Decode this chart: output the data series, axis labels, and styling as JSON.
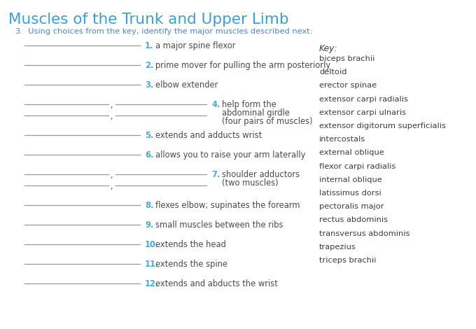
{
  "title": "Muscles of the Trunk and Upper Limb",
  "title_color": "#3B9FD4",
  "subtitle": "3.  Using choices from the key, identify the major muscles described next:",
  "subtitle_color": "#4A86C8",
  "bg_color": "#FFFFFF",
  "question_number_color": "#4BAAD3",
  "question_text_color": "#4A4A4A",
  "key_title": "Key:",
  "key_items": [
    "biceps brachii",
    "deltoid",
    "erector spinae",
    "extensor carpi radialis",
    "extensor carpi ulnaris",
    "extensor digitorum superficialis",
    "intercostals",
    "external oblique",
    "flexor carpi radialis",
    "internal oblique",
    "latissimus dorsi",
    "pectoralis major",
    "rectus abdominis",
    "transversus abdominis",
    "trapezius",
    "triceps brachii"
  ],
  "key_color": "#3D3D3D",
  "questions": [
    {
      "num": "1.",
      "text": "a major spine flexor",
      "double": false
    },
    {
      "num": "2.",
      "text": "prime mover for pulling the arm posteriorly",
      "double": false
    },
    {
      "num": "3.",
      "text": "elbow extender",
      "double": false
    },
    {
      "num": "4.",
      "text1": "help form the",
      "text2": "abdominal girdle",
      "text3": "(four pairs of muscles)",
      "double": true
    },
    {
      "num": "5.",
      "text": "extends and adducts wrist",
      "double": false
    },
    {
      "num": "6.",
      "text": "allows you to raise your arm laterally",
      "double": false
    },
    {
      "num": "7.",
      "text1": "shoulder adductors",
      "text2": "(two muscles)",
      "double": true
    },
    {
      "num": "8.",
      "text": "flexes elbow; supinates the forearm",
      "double": false
    },
    {
      "num": "9.",
      "text": "small muscles between the ribs",
      "double": false
    },
    {
      "num": "10.",
      "text": "extends the head",
      "double": false
    },
    {
      "num": "11.",
      "text": "extends the spine",
      "double": false
    },
    {
      "num": "12.",
      "text": "extends and abducts the wrist",
      "double": false
    }
  ],
  "line_color": "#999999",
  "figsize": [
    6.8,
    4.7
  ],
  "dpi": 100
}
